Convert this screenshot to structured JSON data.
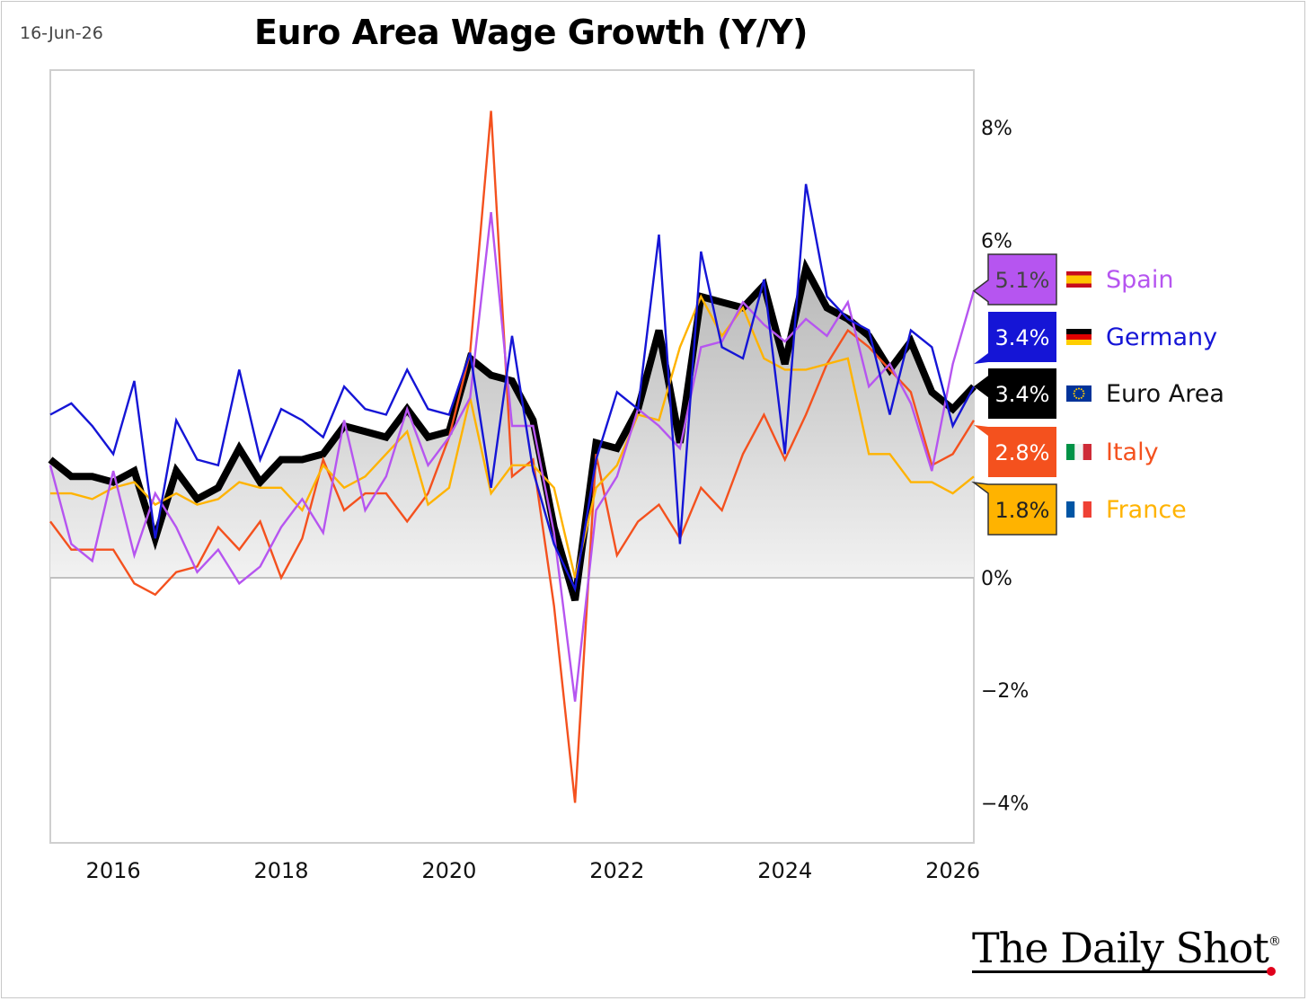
{
  "header": {
    "date": "16-Jun-26",
    "title": "Euro Area Wage Growth (Y/Y)"
  },
  "branding": {
    "name": "The Daily Shot",
    "mark": "®",
    "accent": "#e0001b"
  },
  "chart_data": {
    "type": "line",
    "title": "Euro Area Wage Growth (Y/Y)",
    "xlabel": "",
    "ylabel": "",
    "y_unit": "%",
    "ylim": [
      -4.6,
      9
    ],
    "xlim": [
      2015.25,
      2026.25
    ],
    "x_ticks": [
      2016,
      2018,
      2020,
      2022,
      2024,
      2026
    ],
    "y_ticks": [
      -4,
      -2,
      0,
      8
    ],
    "y_tick_labels": [
      "−4%",
      "−2%",
      "0%",
      "8%"
    ],
    "y_tick_partial": {
      "value": 6,
      "label": "6%"
    },
    "grid": false,
    "zero_line": true,
    "legend_position": "right",
    "x": [
      2015.25,
      2015.5,
      2015.75,
      2016,
      2016.25,
      2016.5,
      2016.75,
      2017,
      2017.25,
      2017.5,
      2017.75,
      2018,
      2018.25,
      2018.5,
      2018.75,
      2019,
      2019.25,
      2019.5,
      2019.75,
      2020,
      2020.25,
      2020.5,
      2020.75,
      2021,
      2021.25,
      2021.5,
      2021.75,
      2022,
      2022.25,
      2022.5,
      2022.75,
      2023,
      2023.25,
      2023.5,
      2023.75,
      2024,
      2024.25,
      2024.5,
      2024.75,
      2025,
      2025.25,
      2025.5,
      2025.75,
      2026,
      2026.25
    ],
    "series": [
      {
        "name": "Spain",
        "color": "#b655f0",
        "last_label": "5.1%",
        "flag": [
          "#c60b1e",
          "#ffc400",
          "#c60b1e"
        ],
        "values": [
          2.0,
          0.6,
          0.3,
          1.9,
          0.4,
          1.5,
          0.9,
          0.1,
          0.5,
          -0.1,
          0.2,
          0.9,
          1.4,
          0.8,
          2.8,
          1.2,
          1.8,
          3.0,
          2.0,
          2.5,
          3.2,
          6.5,
          2.7,
          2.7,
          0.8,
          -2.2,
          1.2,
          1.8,
          3.0,
          2.7,
          2.3,
          4.1,
          4.2,
          4.9,
          4.5,
          4.2,
          4.6,
          4.3,
          4.9,
          3.4,
          3.8,
          3.1,
          1.9,
          3.8,
          5.1
        ]
      },
      {
        "name": "Germany",
        "color": "#1515d6",
        "last_label": "3.4%",
        "flag": [
          "#000000",
          "#dd0000",
          "#ffce00"
        ],
        "values": [
          2.9,
          3.1,
          2.7,
          2.2,
          3.5,
          0.7,
          2.8,
          2.1,
          2.0,
          3.7,
          2.1,
          3.0,
          2.8,
          2.5,
          3.4,
          3.0,
          2.9,
          3.7,
          3.0,
          2.9,
          4.0,
          1.6,
          4.3,
          1.9,
          0.6,
          -0.2,
          2.1,
          3.3,
          3.0,
          6.1,
          0.6,
          5.8,
          4.1,
          3.9,
          5.3,
          2.2,
          7.0,
          5.0,
          4.6,
          4.4,
          2.9,
          4.4,
          4.1,
          2.7,
          3.4
        ]
      },
      {
        "name": "Euro Area",
        "color": "#000000",
        "last_label": "3.4%",
        "flag": [
          "#003399",
          "#003399",
          "#003399"
        ],
        "values": [
          2.1,
          1.8,
          1.8,
          1.7,
          1.9,
          0.7,
          1.9,
          1.4,
          1.6,
          2.3,
          1.7,
          2.1,
          2.1,
          2.2,
          2.7,
          2.6,
          2.5,
          3.0,
          2.5,
          2.6,
          3.9,
          3.6,
          3.5,
          2.8,
          0.9,
          -0.4,
          2.4,
          2.3,
          3.0,
          4.4,
          2.4,
          5.0,
          4.9,
          4.8,
          5.2,
          3.8,
          5.5,
          4.8,
          4.6,
          4.3,
          3.7,
          4.2,
          3.3,
          3.0,
          3.4
        ]
      },
      {
        "name": "Italy",
        "color": "#f4511e",
        "last_label": "2.8%",
        "flag": [
          "#009246",
          "#f1f2f1",
          "#ce2b37"
        ],
        "values": [
          1.0,
          0.5,
          0.5,
          0.5,
          -0.1,
          -0.3,
          0.1,
          0.2,
          0.9,
          0.5,
          1.0,
          0.0,
          0.7,
          2.1,
          1.2,
          1.5,
          1.5,
          1.0,
          1.5,
          2.5,
          4.0,
          8.3,
          1.8,
          2.1,
          -0.5,
          -4.0,
          2.2,
          0.4,
          1.0,
          1.3,
          0.7,
          1.6,
          1.2,
          2.2,
          2.9,
          2.1,
          2.9,
          3.8,
          4.4,
          4.1,
          3.7,
          3.3,
          2.0,
          2.2,
          2.8
        ]
      },
      {
        "name": "France",
        "color": "#ffb300",
        "last_label": "1.8%",
        "flag": [
          "#0055a4",
          "#ffffff",
          "#ef4135"
        ],
        "values": [
          1.5,
          1.5,
          1.4,
          1.6,
          1.7,
          1.3,
          1.5,
          1.3,
          1.4,
          1.7,
          1.6,
          1.6,
          1.2,
          2.0,
          1.6,
          1.8,
          2.2,
          2.6,
          1.3,
          1.6,
          3.2,
          1.5,
          2.0,
          2.0,
          1.6,
          0.0,
          1.6,
          2.0,
          2.9,
          2.8,
          4.1,
          5.0,
          4.3,
          4.8,
          3.9,
          3.7,
          3.7,
          3.8,
          3.9,
          2.2,
          2.2,
          1.7,
          1.7,
          1.5,
          1.8
        ]
      }
    ]
  }
}
